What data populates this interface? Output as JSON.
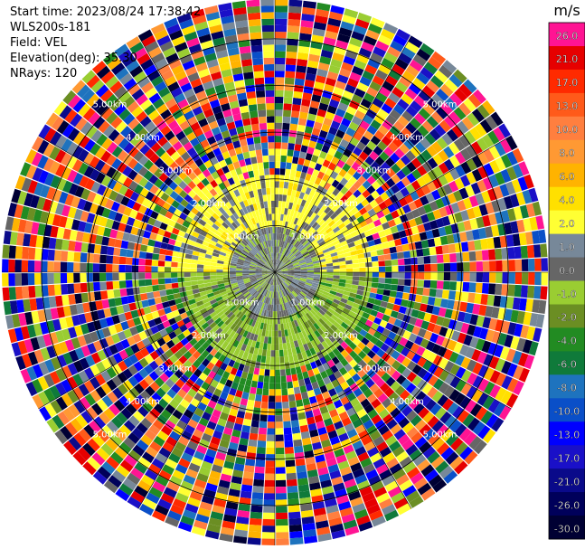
{
  "header": {
    "start_time": "Start time: 2023/08/24 17:38:42",
    "instrument": "WLS200s-181",
    "field": "Field: VEL",
    "elevation": "Elevation(deg): 35.30",
    "nrays": "NRays: 120"
  },
  "chart_data": {
    "type": "heatmap",
    "projection": "polar",
    "field": "VEL",
    "elevation_deg": 35.3,
    "n_rays": 120,
    "range_rings_km": [
      {
        "value": 1.0,
        "label": "1.00km"
      },
      {
        "value": 2.0,
        "label": "2.00km"
      },
      {
        "value": 3.0,
        "label": "3.00km"
      },
      {
        "value": 4.0,
        "label": "4.00km"
      },
      {
        "value": 5.0,
        "label": "5.00km"
      }
    ],
    "max_range_km": 5.85,
    "colorbar": {
      "unit": "m/s",
      "bands": [
        {
          "label": "26.0",
          "color": "#ff1493"
        },
        {
          "label": "21.0",
          "color": "#e60000"
        },
        {
          "label": "17.0",
          "color": "#ff2a00"
        },
        {
          "label": "13.0",
          "color": "#ff5a1a"
        },
        {
          "label": "10.0",
          "color": "#ff7f3f"
        },
        {
          "label": "8.0",
          "color": "#ff9933"
        },
        {
          "label": "6.0",
          "color": "#ffb300"
        },
        {
          "label": "4.0",
          "color": "#ffe000"
        },
        {
          "label": "2.0",
          "color": "#ffff33"
        },
        {
          "label": "1.0",
          "color": "#778899"
        },
        {
          "label": "0.0",
          "color": "#666666"
        },
        {
          "label": "-1.0",
          "color": "#9acd32"
        },
        {
          "label": "-2.0",
          "color": "#6b8e23"
        },
        {
          "label": "-4.0",
          "color": "#228b22"
        },
        {
          "label": "-6.0",
          "color": "#0f7a3a"
        },
        {
          "label": "-8.0",
          "color": "#1e73be"
        },
        {
          "label": "-10.0",
          "color": "#0a4fc8"
        },
        {
          "label": "-13.0",
          "color": "#0000ff"
        },
        {
          "label": "-17.0",
          "color": "#1a10c8"
        },
        {
          "label": "-21.0",
          "color": "#0a0a8a"
        },
        {
          "label": "-26.0",
          "color": "#00005a"
        },
        {
          "label": "-30.0",
          "color": "#000033"
        }
      ]
    }
  }
}
